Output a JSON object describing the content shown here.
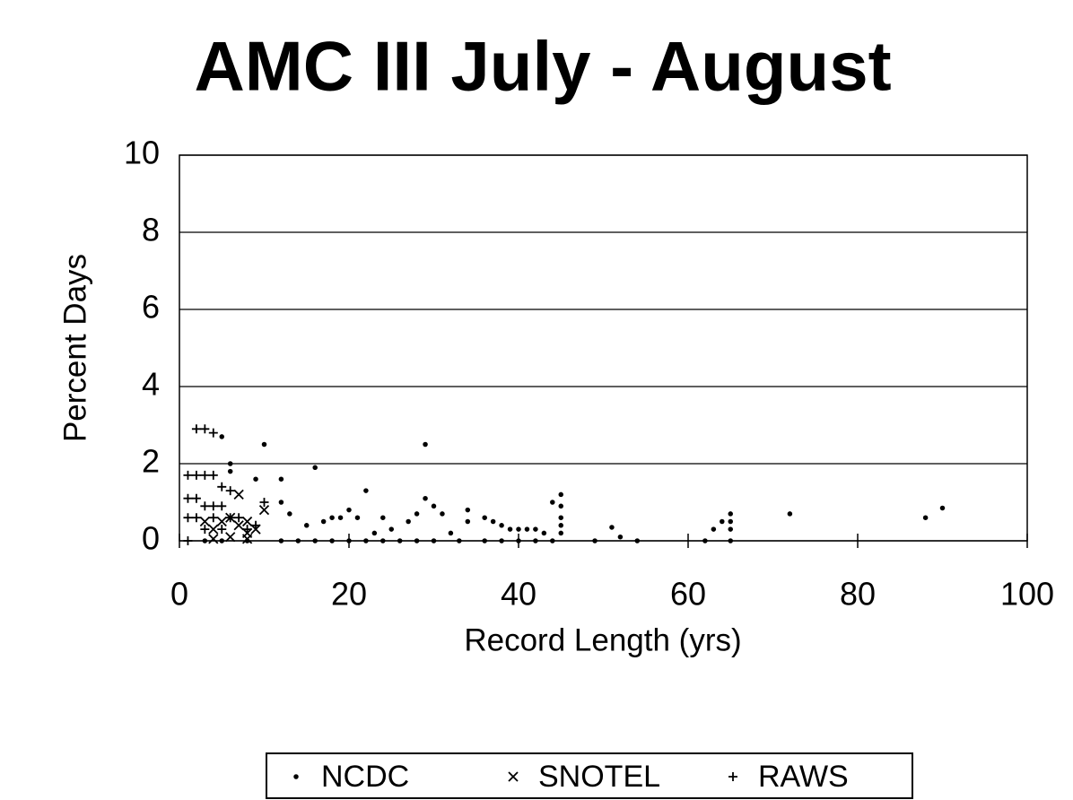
{
  "chart_data": {
    "type": "scatter",
    "title": "AMC III  July - August",
    "xlabel": "Record Length  (yrs)",
    "ylabel": "Percent Days",
    "xlim": [
      0,
      100
    ],
    "ylim": [
      0,
      10
    ],
    "xticks": [
      0,
      20,
      40,
      60,
      80,
      100
    ],
    "yticks": [
      0,
      2,
      4,
      6,
      8,
      10
    ],
    "grid": true,
    "legend": "bottom",
    "series": [
      {
        "name": "NCDC",
        "color": "#000000",
        "marker": "dot",
        "x": [
          5,
          6,
          6,
          10,
          9,
          12,
          12,
          13,
          16,
          15,
          17,
          18,
          19,
          20,
          21,
          22,
          23,
          24,
          25,
          27,
          28,
          29,
          29,
          30,
          31,
          32,
          34,
          34,
          36,
          37,
          38,
          39,
          40,
          41,
          42,
          43,
          44,
          45,
          45,
          45,
          45,
          45,
          51,
          52,
          63,
          64,
          65,
          65,
          65,
          72,
          88,
          90,
          3,
          5,
          8,
          12,
          14,
          16,
          18,
          20,
          22,
          24,
          26,
          28,
          30,
          33,
          36,
          38,
          40,
          42,
          44,
          49,
          54,
          62,
          65
        ],
        "values": [
          2.7,
          2.0,
          1.8,
          2.5,
          1.6,
          1.6,
          1.0,
          0.7,
          1.9,
          0.4,
          0.5,
          0.6,
          0.6,
          0.8,
          0.6,
          1.3,
          0.2,
          0.6,
          0.3,
          0.5,
          0.7,
          2.5,
          1.1,
          0.9,
          0.7,
          0.2,
          0.8,
          0.5,
          0.6,
          0.5,
          0.4,
          0.3,
          0.3,
          0.3,
          0.3,
          0.2,
          1.0,
          1.2,
          0.9,
          0.6,
          0.4,
          0.2,
          0.35,
          0.1,
          0.3,
          0.5,
          0.7,
          0.5,
          0.3,
          0.7,
          0.6,
          0.85,
          0,
          0,
          0,
          0,
          0,
          0,
          0,
          0,
          0,
          0,
          0,
          0,
          0,
          0,
          0,
          0,
          0,
          0,
          0,
          0,
          0,
          0,
          0
        ]
      },
      {
        "name": "SNOTEL",
        "color": "#000000",
        "marker": "x",
        "x": [
          3,
          4,
          5,
          6,
          7,
          7,
          8,
          8,
          9,
          10,
          4,
          6,
          8
        ],
        "values": [
          0.5,
          0.3,
          0.5,
          0.6,
          1.2,
          0.4,
          0.5,
          0.2,
          0.3,
          0.8,
          0.05,
          0.1,
          0.05
        ]
      },
      {
        "name": "RAWS",
        "color": "#000000",
        "marker": "plus",
        "x": [
          1,
          1,
          1,
          2,
          2,
          2,
          2,
          3,
          3,
          3,
          4,
          4,
          4,
          4,
          5,
          5,
          6,
          6,
          7,
          8,
          9,
          10,
          3,
          5,
          1
        ],
        "values": [
          1.1,
          1.7,
          0.6,
          2.9,
          1.7,
          1.1,
          0.6,
          2.9,
          1.7,
          0.9,
          2.8,
          1.7,
          0.9,
          0.6,
          1.4,
          0.9,
          1.3,
          0.6,
          0.6,
          0.3,
          0.4,
          1.0,
          0.3,
          0.3,
          0
        ]
      }
    ]
  }
}
